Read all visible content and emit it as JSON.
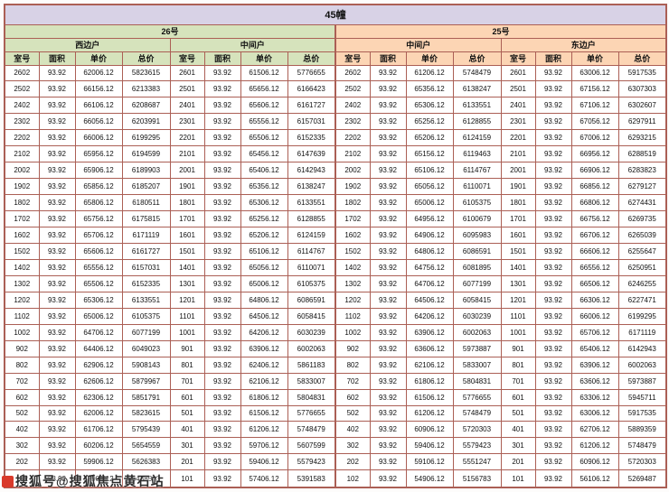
{
  "title": "45幢",
  "groups": [
    {
      "label": "26号",
      "units": [
        "西边户",
        "中间户"
      ]
    },
    {
      "label": "25号",
      "units": [
        "中间户",
        "东边户"
      ]
    }
  ],
  "table": {
    "columns": [
      "室号",
      "面积",
      "单价",
      "总价"
    ],
    "rows": [
      [
        "2602",
        "93.92",
        "62006.12",
        "5823615",
        "2601",
        "93.92",
        "61506.12",
        "5776655",
        "2602",
        "93.92",
        "61206.12",
        "5748479",
        "2601",
        "93.92",
        "63006.12",
        "5917535"
      ],
      [
        "2502",
        "93.92",
        "66156.12",
        "6213383",
        "2501",
        "93.92",
        "65656.12",
        "6166423",
        "2502",
        "93.92",
        "65356.12",
        "6138247",
        "2501",
        "93.92",
        "67156.12",
        "6307303"
      ],
      [
        "2402",
        "93.92",
        "66106.12",
        "6208687",
        "2401",
        "93.92",
        "65606.12",
        "6161727",
        "2402",
        "93.92",
        "65306.12",
        "6133551",
        "2401",
        "93.92",
        "67106.12",
        "6302607"
      ],
      [
        "2302",
        "93.92",
        "66056.12",
        "6203991",
        "2301",
        "93.92",
        "65556.12",
        "6157031",
        "2302",
        "93.92",
        "65256.12",
        "6128855",
        "2301",
        "93.92",
        "67056.12",
        "6297911"
      ],
      [
        "2202",
        "93.92",
        "66006.12",
        "6199295",
        "2201",
        "93.92",
        "65506.12",
        "6152335",
        "2202",
        "93.92",
        "65206.12",
        "6124159",
        "2201",
        "93.92",
        "67006.12",
        "6293215"
      ],
      [
        "2102",
        "93.92",
        "65956.12",
        "6194599",
        "2101",
        "93.92",
        "65456.12",
        "6147639",
        "2102",
        "93.92",
        "65156.12",
        "6119463",
        "2101",
        "93.92",
        "66956.12",
        "6288519"
      ],
      [
        "2002",
        "93.92",
        "65906.12",
        "6189903",
        "2001",
        "93.92",
        "65406.12",
        "6142943",
        "2002",
        "93.92",
        "65106.12",
        "6114767",
        "2001",
        "93.92",
        "66906.12",
        "6283823"
      ],
      [
        "1902",
        "93.92",
        "65856.12",
        "6185207",
        "1901",
        "93.92",
        "65356.12",
        "6138247",
        "1902",
        "93.92",
        "65056.12",
        "6110071",
        "1901",
        "93.92",
        "66856.12",
        "6279127"
      ],
      [
        "1802",
        "93.92",
        "65806.12",
        "6180511",
        "1801",
        "93.92",
        "65306.12",
        "6133551",
        "1802",
        "93.92",
        "65006.12",
        "6105375",
        "1801",
        "93.92",
        "66806.12",
        "6274431"
      ],
      [
        "1702",
        "93.92",
        "65756.12",
        "6175815",
        "1701",
        "93.92",
        "65256.12",
        "6128855",
        "1702",
        "93.92",
        "64956.12",
        "6100679",
        "1701",
        "93.92",
        "66756.12",
        "6269735"
      ],
      [
        "1602",
        "93.92",
        "65706.12",
        "6171119",
        "1601",
        "93.92",
        "65206.12",
        "6124159",
        "1602",
        "93.92",
        "64906.12",
        "6095983",
        "1601",
        "93.92",
        "66706.12",
        "6265039"
      ],
      [
        "1502",
        "93.92",
        "65606.12",
        "6161727",
        "1501",
        "93.92",
        "65106.12",
        "6114767",
        "1502",
        "93.92",
        "64806.12",
        "6086591",
        "1501",
        "93.92",
        "66606.12",
        "6255647"
      ],
      [
        "1402",
        "93.92",
        "65556.12",
        "6157031",
        "1401",
        "93.92",
        "65056.12",
        "6110071",
        "1402",
        "93.92",
        "64756.12",
        "6081895",
        "1401",
        "93.92",
        "66556.12",
        "6250951"
      ],
      [
        "1302",
        "93.92",
        "65506.12",
        "6152335",
        "1301",
        "93.92",
        "65006.12",
        "6105375",
        "1302",
        "93.92",
        "64706.12",
        "6077199",
        "1301",
        "93.92",
        "66506.12",
        "6246255"
      ],
      [
        "1202",
        "93.92",
        "65306.12",
        "6133551",
        "1201",
        "93.92",
        "64806.12",
        "6086591",
        "1202",
        "93.92",
        "64506.12",
        "6058415",
        "1201",
        "93.92",
        "66306.12",
        "6227471"
      ],
      [
        "1102",
        "93.92",
        "65006.12",
        "6105375",
        "1101",
        "93.92",
        "64506.12",
        "6058415",
        "1102",
        "93.92",
        "64206.12",
        "6030239",
        "1101",
        "93.92",
        "66006.12",
        "6199295"
      ],
      [
        "1002",
        "93.92",
        "64706.12",
        "6077199",
        "1001",
        "93.92",
        "64206.12",
        "6030239",
        "1002",
        "93.92",
        "63906.12",
        "6002063",
        "1001",
        "93.92",
        "65706.12",
        "6171119"
      ],
      [
        "902",
        "93.92",
        "64406.12",
        "6049023",
        "901",
        "93.92",
        "63906.12",
        "6002063",
        "902",
        "93.92",
        "63606.12",
        "5973887",
        "901",
        "93.92",
        "65406.12",
        "6142943"
      ],
      [
        "802",
        "93.92",
        "62906.12",
        "5908143",
        "801",
        "93.92",
        "62406.12",
        "5861183",
        "802",
        "93.92",
        "62106.12",
        "5833007",
        "801",
        "93.92",
        "63906.12",
        "6002063"
      ],
      [
        "702",
        "93.92",
        "62606.12",
        "5879967",
        "701",
        "93.92",
        "62106.12",
        "5833007",
        "702",
        "93.92",
        "61806.12",
        "5804831",
        "701",
        "93.92",
        "63606.12",
        "5973887"
      ],
      [
        "602",
        "93.92",
        "62306.12",
        "5851791",
        "601",
        "93.92",
        "61806.12",
        "5804831",
        "602",
        "93.92",
        "61506.12",
        "5776655",
        "601",
        "93.92",
        "63306.12",
        "5945711"
      ],
      [
        "502",
        "93.92",
        "62006.12",
        "5823615",
        "501",
        "93.92",
        "61506.12",
        "5776655",
        "502",
        "93.92",
        "61206.12",
        "5748479",
        "501",
        "93.92",
        "63006.12",
        "5917535"
      ],
      [
        "402",
        "93.92",
        "61706.12",
        "5795439",
        "401",
        "93.92",
        "61206.12",
        "5748479",
        "402",
        "93.92",
        "60906.12",
        "5720303",
        "401",
        "93.92",
        "62706.12",
        "5889359"
      ],
      [
        "302",
        "93.92",
        "60206.12",
        "5654559",
        "301",
        "93.92",
        "59706.12",
        "5607599",
        "302",
        "93.92",
        "59406.12",
        "5579423",
        "301",
        "93.92",
        "61206.12",
        "5748479"
      ],
      [
        "202",
        "93.92",
        "59906.12",
        "5626383",
        "201",
        "93.92",
        "59406.12",
        "5579423",
        "202",
        "93.92",
        "59106.12",
        "5551247",
        "201",
        "93.92",
        "60906.12",
        "5720303"
      ],
      [
        "102",
        "93.92",
        "57906.12",
        "5438543",
        "101",
        "93.92",
        "57406.12",
        "5391583",
        "102",
        "93.92",
        "54906.12",
        "5156783",
        "101",
        "93.92",
        "56106.12",
        "5269487"
      ]
    ]
  },
  "watermark": "搜狐号@搜狐焦点黄石站",
  "colors": {
    "border": "#ab5f55",
    "title_bg": "#d8d2e6",
    "green_bg": "#d6e3bc",
    "peach_bg": "#fcd5b4",
    "cell_bg": "#ffffff",
    "text": "#111111"
  }
}
